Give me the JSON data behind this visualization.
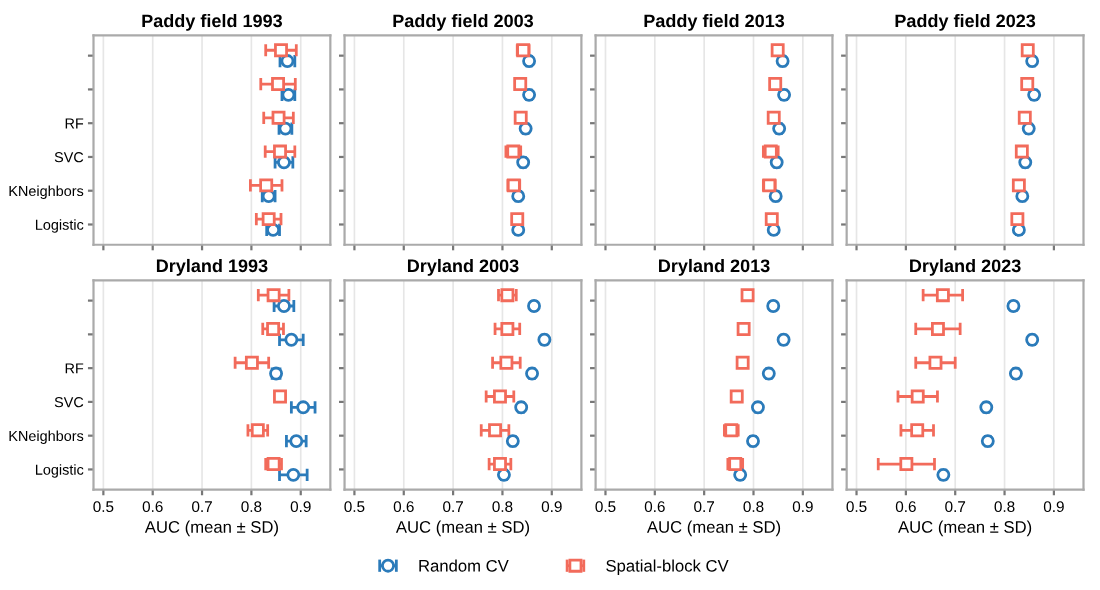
{
  "chart_data": [
    {
      "type": "scatter",
      "orientation": "horizontal",
      "title": "Paddy field 1993",
      "categories": [
        null,
        null,
        "RF",
        "SVC",
        "KNeighbors",
        "Logistic"
      ],
      "xlim": [
        0.48,
        0.96
      ],
      "xticks": [
        0.5,
        0.6,
        0.7,
        0.8,
        0.9
      ],
      "grid": "x",
      "tick_labels": "y",
      "legend": "bottom",
      "series": [
        {
          "name": "Random CV",
          "color": "#2b7bba",
          "marker": "circle",
          "values": [
            0.873,
            0.875,
            0.869,
            0.866,
            0.835,
            0.844
          ],
          "errors": [
            0.015,
            0.013,
            0.013,
            0.018,
            0.013,
            0.013
          ]
        },
        {
          "name": "Spatial-block CV",
          "color": "#f26b5b",
          "marker": "square",
          "values": [
            0.86,
            0.854,
            0.855,
            0.858,
            0.83,
            0.835
          ],
          "errors": [
            0.031,
            0.035,
            0.03,
            0.03,
            0.032,
            0.025
          ]
        }
      ]
    },
    {
      "type": "scatter",
      "orientation": "horizontal",
      "title": "Paddy field 2003",
      "categories": [
        null,
        null,
        "RF",
        "SVC",
        "KNeighbors",
        "Logistic"
      ],
      "xlim": [
        0.48,
        0.96
      ],
      "xticks": [
        0.5,
        0.6,
        0.7,
        0.8,
        0.9
      ],
      "grid": "x",
      "tick_labels": false,
      "legend": "bottom",
      "series": [
        {
          "name": "Random CV",
          "color": "#2b7bba",
          "marker": "circle",
          "values": [
            0.854,
            0.854,
            0.847,
            0.842,
            0.832,
            0.832
          ],
          "errors": [
            0.005,
            0.005,
            0.005,
            0.005,
            0.005,
            0.005
          ]
        },
        {
          "name": "Spatial-block CV",
          "color": "#f26b5b",
          "marker": "square",
          "values": [
            0.842,
            0.836,
            0.837,
            0.822,
            0.823,
            0.83
          ],
          "errors": [
            0.012,
            0.01,
            0.01,
            0.015,
            0.012,
            0.01
          ]
        }
      ]
    },
    {
      "type": "scatter",
      "orientation": "horizontal",
      "title": "Paddy field 2013",
      "categories": [
        null,
        null,
        "RF",
        "SVC",
        "KNeighbors",
        "Logistic"
      ],
      "xlim": [
        0.48,
        0.96
      ],
      "xticks": [
        0.5,
        0.6,
        0.7,
        0.8,
        0.9
      ],
      "grid": "x",
      "tick_labels": false,
      "legend": "bottom",
      "series": [
        {
          "name": "Random CV",
          "color": "#2b7bba",
          "marker": "circle",
          "values": [
            0.859,
            0.862,
            0.852,
            0.847,
            0.845,
            0.841
          ],
          "errors": [
            0.005,
            0.005,
            0.005,
            0.005,
            0.005,
            0.005
          ]
        },
        {
          "name": "Spatial-block CV",
          "color": "#f26b5b",
          "marker": "square",
          "values": [
            0.849,
            0.844,
            0.841,
            0.835,
            0.832,
            0.837
          ],
          "errors": [
            0.008,
            0.01,
            0.008,
            0.015,
            0.012,
            0.01
          ]
        }
      ]
    },
    {
      "type": "scatter",
      "orientation": "horizontal",
      "title": "Paddy field 2023",
      "categories": [
        null,
        null,
        "RF",
        "SVC",
        "KNeighbors",
        "Logistic"
      ],
      "xlim": [
        0.48,
        0.96
      ],
      "xticks": [
        0.5,
        0.6,
        0.7,
        0.8,
        0.9
      ],
      "grid": "x",
      "tick_labels": false,
      "legend": "bottom",
      "series": [
        {
          "name": "Random CV",
          "color": "#2b7bba",
          "marker": "circle",
          "values": [
            0.856,
            0.86,
            0.849,
            0.842,
            0.836,
            0.829
          ],
          "errors": [
            0.005,
            0.005,
            0.005,
            0.005,
            0.005,
            0.005
          ]
        },
        {
          "name": "Spatial-block CV",
          "color": "#f26b5b",
          "marker": "square",
          "values": [
            0.847,
            0.846,
            0.841,
            0.835,
            0.829,
            0.826
          ],
          "errors": [
            0.008,
            0.008,
            0.008,
            0.008,
            0.008,
            0.008
          ]
        }
      ]
    },
    {
      "type": "scatter",
      "orientation": "horizontal",
      "title": "Dryland 1993",
      "categories": [
        null,
        null,
        "RF",
        "SVC",
        "KNeighbors",
        "Logistic"
      ],
      "xlim": [
        0.48,
        0.96
      ],
      "xticks": [
        0.5,
        0.6,
        0.7,
        0.8,
        0.9
      ],
      "grid": "x",
      "xlabel": "AUC (mean ± SD)",
      "legend": "bottom",
      "series": [
        {
          "name": "Random CV",
          "color": "#2b7bba",
          "marker": "circle",
          "values": [
            0.866,
            0.881,
            0.85,
            0.905,
            0.891,
            0.885
          ],
          "errors": [
            0.02,
            0.024,
            0.008,
            0.024,
            0.02,
            0.028
          ]
        },
        {
          "name": "Spatial-block CV",
          "color": "#f26b5b",
          "marker": "square",
          "values": [
            0.845,
            0.844,
            0.801,
            0.858,
            0.813,
            0.845
          ],
          "errors": [
            0.031,
            0.021,
            0.034,
            0.01,
            0.02,
            0.016
          ]
        }
      ]
    },
    {
      "type": "scatter",
      "orientation": "horizontal",
      "title": "Dryland 2003",
      "categories": [
        null,
        null,
        "RF",
        "SVC",
        "KNeighbors",
        "Logistic"
      ],
      "xlim": [
        0.48,
        0.96
      ],
      "xticks": [
        0.5,
        0.6,
        0.7,
        0.8,
        0.9
      ],
      "grid": "x",
      "tick_labels": "x",
      "xlabel": "AUC (mean ± SD)",
      "legend": "bottom",
      "series": [
        {
          "name": "Random CV",
          "color": "#2b7bba",
          "marker": "circle",
          "values": [
            0.864,
            0.885,
            0.86,
            0.838,
            0.821,
            0.803
          ],
          "errors": [
            0.005,
            0.005,
            0.005,
            0.005,
            0.005,
            0.005
          ]
        },
        {
          "name": "Spatial-block CV",
          "color": "#f26b5b",
          "marker": "square",
          "values": [
            0.81,
            0.81,
            0.808,
            0.795,
            0.785,
            0.795
          ],
          "errors": [
            0.018,
            0.025,
            0.028,
            0.028,
            0.028,
            0.022
          ]
        }
      ]
    },
    {
      "type": "scatter",
      "orientation": "horizontal",
      "title": "Dryland 2013",
      "categories": [
        null,
        null,
        "RF",
        "SVC",
        "KNeighbors",
        "Logistic"
      ],
      "xlim": [
        0.48,
        0.96
      ],
      "xticks": [
        0.5,
        0.6,
        0.7,
        0.8,
        0.9
      ],
      "grid": "x",
      "tick_labels": "x",
      "xlabel": "AUC (mean ± SD)",
      "legend": "bottom",
      "series": [
        {
          "name": "Random CV",
          "color": "#2b7bba",
          "marker": "circle",
          "values": [
            0.84,
            0.861,
            0.831,
            0.809,
            0.799,
            0.773
          ],
          "errors": [
            0.005,
            0.005,
            0.005,
            0.005,
            0.005,
            0.005
          ]
        },
        {
          "name": "Spatial-block CV",
          "color": "#f26b5b",
          "marker": "square",
          "values": [
            0.788,
            0.78,
            0.778,
            0.766,
            0.755,
            0.763
          ],
          "errors": [
            0.01,
            0.008,
            0.008,
            0.01,
            0.014,
            0.015
          ]
        }
      ]
    },
    {
      "type": "scatter",
      "orientation": "horizontal",
      "title": "Dryland 2023",
      "categories": [
        null,
        null,
        "RF",
        "SVC",
        "KNeighbors",
        "Logistic"
      ],
      "xlim": [
        0.48,
        0.96
      ],
      "xticks": [
        0.5,
        0.6,
        0.7,
        0.8,
        0.9
      ],
      "grid": "x",
      "tick_labels": "x",
      "xlabel": "AUC (mean ± SD)",
      "legend": "bottom",
      "series": [
        {
          "name": "Random CV",
          "color": "#2b7bba",
          "marker": "circle",
          "values": [
            0.818,
            0.856,
            0.823,
            0.763,
            0.766,
            0.676
          ],
          "errors": [
            0.005,
            0.005,
            0.005,
            0.005,
            0.005,
            0.005
          ]
        },
        {
          "name": "Spatial-block CV",
          "color": "#f26b5b",
          "marker": "square",
          "values": [
            0.675,
            0.665,
            0.66,
            0.624,
            0.623,
            0.601
          ],
          "errors": [
            0.04,
            0.045,
            0.04,
            0.04,
            0.033,
            0.057
          ]
        }
      ]
    }
  ]
}
